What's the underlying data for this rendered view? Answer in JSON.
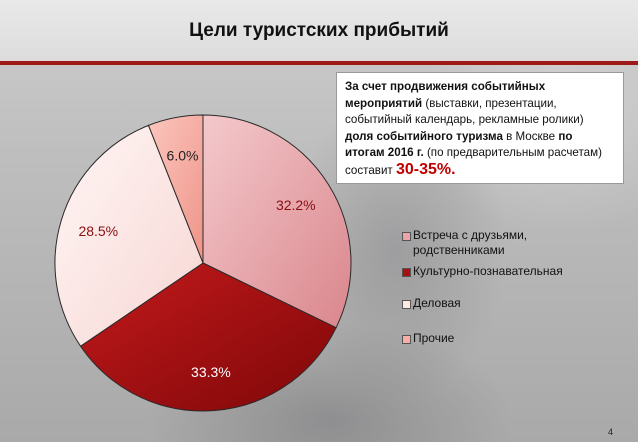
{
  "title": "Цели туристских прибытий",
  "callout": {
    "p1": "За счет продвижения событийных мероприятий",
    "p2": " (выставки, презентации, событийный календарь, рекламные ролики) ",
    "p3": "доля событийного туризма",
    "p4": " в Москве ",
    "p5": "по итогам 2016 г.",
    "p6": " (по предварительным расчетам) составит ",
    "p7": "30-35%."
  },
  "page_number": "4",
  "chart_data": {
    "type": "pie",
    "slices": [
      {
        "label": "Встреча с друзьями, родственниками",
        "value": 32.2,
        "display": "32.2%",
        "color": "#e8a6aa"
      },
      {
        "label": "Культурно-познавательная",
        "value": 33.3,
        "display": "33.3%",
        "color": "#a81012"
      },
      {
        "label": "Деловая",
        "value": 28.5,
        "display": "28.5%",
        "color": "#fde8e6"
      },
      {
        "label": "Прочие",
        "value": 6.0,
        "display": "6.0%",
        "color": "#f6aea6"
      }
    ],
    "start_angle_deg": 0,
    "direction": "clockwise",
    "legend_position": "right"
  }
}
